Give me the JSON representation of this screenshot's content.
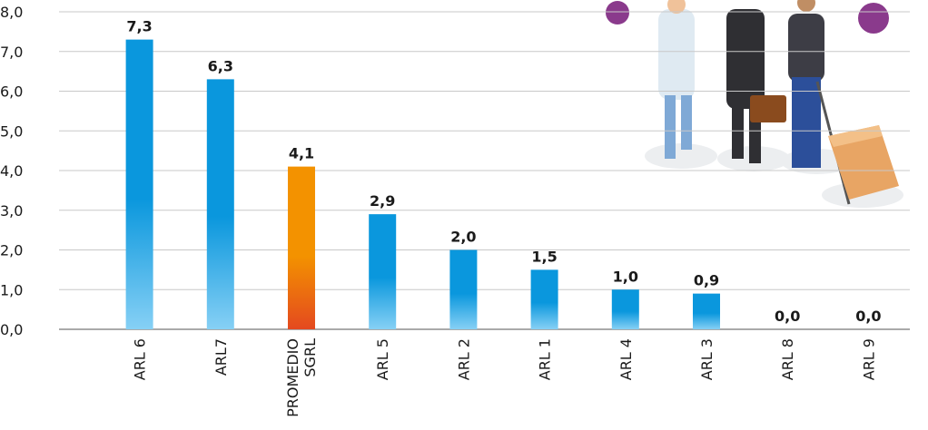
{
  "chart_data": {
    "type": "bar",
    "categories": [
      "ARL 6",
      "ARL7",
      "PROMEDIO SGRL",
      "ARL 5",
      "ARL 2",
      "ARL 1",
      "ARL 4",
      "ARL 3",
      "ARL 8",
      "ARL 9"
    ],
    "values": [
      7.3,
      6.3,
      4.1,
      2.9,
      2.0,
      1.5,
      1.0,
      0.9,
      0.0,
      0.0
    ],
    "value_labels": [
      "7,3",
      "6,3",
      "4,1",
      "2,9",
      "2,0",
      "1,5",
      "1,0",
      "0,9",
      "0,0",
      "0,0"
    ],
    "colors": [
      "#0a97dd",
      "#0a97dd",
      "#f39200",
      "#0a97dd",
      "#0a97dd",
      "#0a97dd",
      "#0a97dd",
      "#0a97dd",
      "#0a97dd",
      "#0a97dd"
    ],
    "colors_bottom": [
      "#86d0f5",
      "#86d0f5",
      "#e4491f",
      "#86d0f5",
      "#86d0f5",
      "#86d0f5",
      "#86d0f5",
      "#86d0f5",
      "#86d0f5",
      "#86d0f5"
    ],
    "ylim": [
      0,
      8
    ],
    "yticks": [
      {
        "value": 0,
        "label": "0,0"
      },
      {
        "value": 1,
        "label": "1,0"
      },
      {
        "value": 2,
        "label": "2,0"
      },
      {
        "value": 3,
        "label": "3,0"
      },
      {
        "value": 4,
        "label": "4,0"
      },
      {
        "value": 5,
        "label": "5,0"
      },
      {
        "value": 6,
        "label": "6,0"
      },
      {
        "value": 7,
        "label": "7,0"
      },
      {
        "value": 8,
        "label": "8,0"
      }
    ],
    "grid": true
  }
}
